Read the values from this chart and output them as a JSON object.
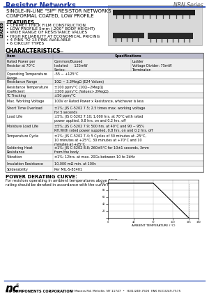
{
  "title_left": "Resistor Networks",
  "title_right": "NRN Series",
  "header_line_color": "#3355bb",
  "side_label": "LEADED",
  "product_title": "SINGLE-IN-LINE \"SIP\" RESISTOR NETWORKS\nCONFORMAL COATED, LOW PROFILE",
  "features_title": "FEATURES",
  "features": [
    "• CERMET THICK FILM CONSTRUCTION",
    "• LOW PROFILE 5mm (.200\" BODY HEIGHT)",
    "• WIDE RANGE OF RESISTANCE VALUES",
    "• HIGH RELIABILITY AT ECONOMICAL PRICING",
    "• 4 PINS TO 13 PINS AVAILABLE",
    "• 6 CIRCUIT TYPES"
  ],
  "chars_title": "CHARACTERISTICS",
  "power_title": "POWER DERATING CURVE:",
  "power_text": "For resistors operating in ambient temperatures above 70°C, power\nrating should be derated in accordance with the curve shown.",
  "xaxis_label": "AMBIENT TEMPERATURE (°C)",
  "footer_nc": "NC COMPONENTS CORPORATION",
  "footer_addr": "70 Maxess Rd. Melville, NY 11747  •  (631)249-7500  FAX (631)249-7575",
  "bg_color": "#ffffff",
  "table_header_bg": "#bbbbcc",
  "table_alt_bg": "#eeeeee",
  "table_border": "#999999"
}
